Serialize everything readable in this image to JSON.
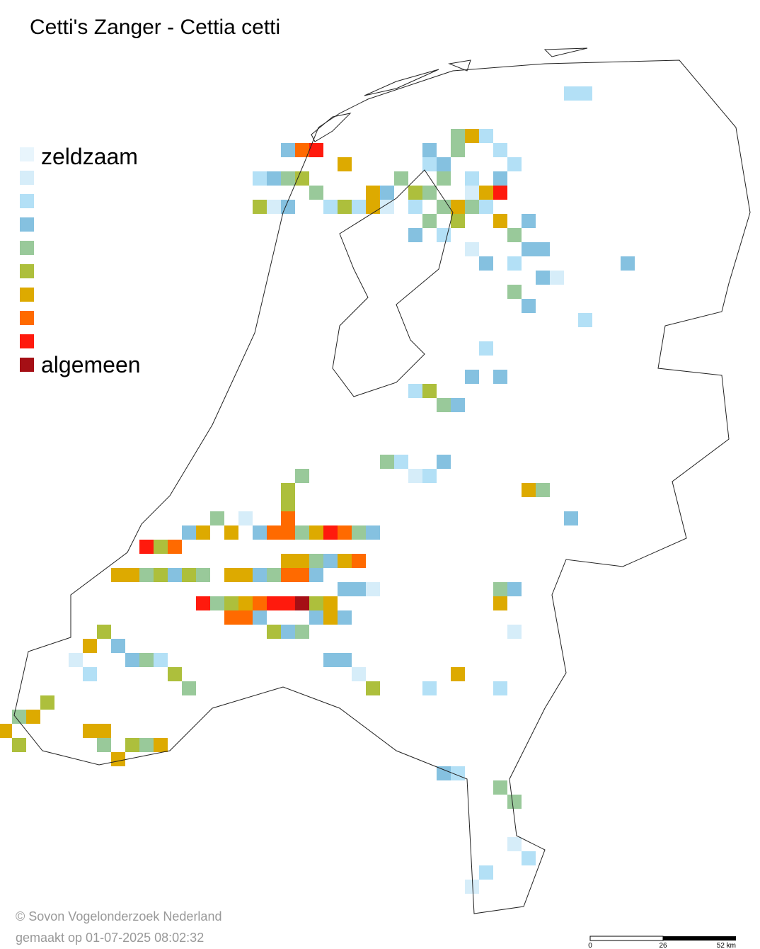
{
  "title": "Cetti's Zanger - Cettia cetti",
  "legend": {
    "top_label": "zeldzaam",
    "bottom_label": "algemeen",
    "colors": [
      "#e8f5fc",
      "#d6edf9",
      "#b3e0f6",
      "#85c1e0",
      "#99c99a",
      "#adbf3c",
      "#ddaa00",
      "#ff6a00",
      "#ff1a0d",
      "#a50f15"
    ]
  },
  "footer": {
    "copyright": "© Sovon Vogelonderzoek Nederland",
    "made": "gemaakt op 01-07-2025 08:02:32"
  },
  "scale": {
    "labels": [
      "0",
      "26",
      "52 km"
    ]
  }
}
